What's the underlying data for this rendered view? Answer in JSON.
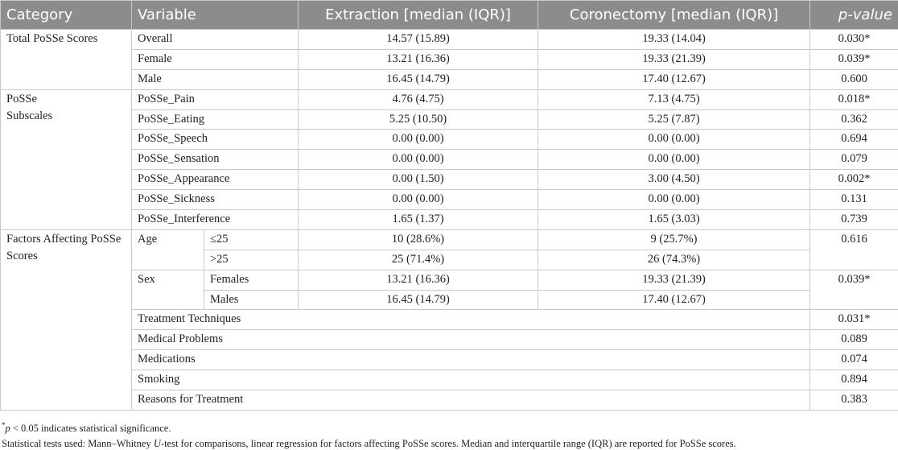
{
  "table": {
    "header": {
      "category": "Category",
      "variable": "Variable",
      "extraction": "Extraction [median (IQR)]",
      "coronectomy": "Coronectomy [median (IQR)]",
      "p_value": "p-value"
    },
    "groups": [
      {
        "category": "Total PoSSe Scores",
        "rows": [
          [
            "Overall",
            "14.57 (15.89)",
            "19.33 (14.04)",
            "0.030*"
          ],
          [
            "Female",
            "13.21 (16.36)",
            "19.33 (21.39)",
            "0.039*"
          ],
          [
            "Male",
            "16.45 (14.79)",
            "17.40 (12.67)",
            "0.600"
          ]
        ]
      },
      {
        "category": "PoSSe Subscales",
        "rows": [
          [
            "PoSSe_Pain",
            "4.76 (4.75)",
            "7.13 (4.75)",
            "0.018*"
          ],
          [
            "PoSSe_Eating",
            "5.25 (10.50)",
            "5.25 (7.87)",
            "0.362"
          ],
          [
            "PoSSe_Speech",
            "0.00 (0.00)",
            "0.00 (0.00)",
            "0.694"
          ],
          [
            "PoSSe_Sensation",
            "0.00 (0.00)",
            "0.00 (0.00)",
            "0.079"
          ],
          [
            "PoSSe_Appearance",
            "0.00 (1.50)",
            "3.00 (4.50)",
            "0.002*"
          ],
          [
            "PoSSe_Sickness",
            "0.00 (0.00)",
            "0.00 (0.00)",
            "0.131"
          ],
          [
            "PoSSe_Interference",
            "1.65 (1.37)",
            "1.65 (3.03)",
            "0.739"
          ]
        ]
      },
      {
        "category": "Factors Affecting PoSSe Scores",
        "subgroups": [
          {
            "variable": "Age",
            "p_value": "0.616",
            "rows": [
              [
                "≤25",
                "10 (28.6%)",
                "9 (25.7%)"
              ],
              [
                ">25",
                "25 (71.4%)",
                "26 (74.3%)"
              ]
            ]
          },
          {
            "variable": "Sex",
            "p_value": "0.039*",
            "rows": [
              [
                "Females",
                "13.21 (16.36)",
                "19.33 (21.39)"
              ],
              [
                "Males",
                "16.45 (14.79)",
                "17.40 (12.67)"
              ]
            ]
          }
        ],
        "other_rows": [
          [
            "Treatment Techniques",
            "0.031*"
          ],
          [
            "Medical Problems",
            "0.089"
          ],
          [
            "Medications",
            "0.074"
          ],
          [
            "Smoking",
            "0.894"
          ],
          [
            "Reasons for Treatment",
            "0.383"
          ]
        ]
      }
    ]
  },
  "footnotes": [
    [
      "*",
      "p",
      " < 0.05 indicates statistical significance."
    ],
    [
      "Statistical tests used: Mann–Whitney ",
      "U",
      "-test for comparisons, linear regression for factors affecting PoSSe scores. Median and interquartile range (IQR) are reported for PoSSe scores."
    ]
  ]
}
